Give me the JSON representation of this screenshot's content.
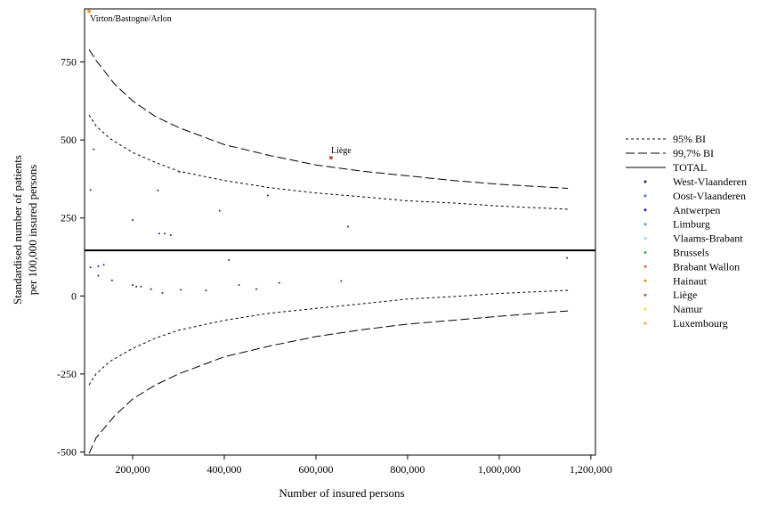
{
  "chart_data": {
    "type": "scatter",
    "xlabel": "Number of insured persons",
    "ylabel_lines": [
      "Standardised number of patients",
      "per 100,000 insured persons"
    ],
    "xlim": [
      95000,
      1210000
    ],
    "ylim": [
      -510,
      920
    ],
    "x_ticks": [
      {
        "value": 200000,
        "label": "200,000"
      },
      {
        "value": 400000,
        "label": "400,000"
      },
      {
        "value": 600000,
        "label": "600,000"
      },
      {
        "value": 800000,
        "label": "800,000"
      },
      {
        "value": 1000000,
        "label": "1,000,000"
      },
      {
        "value": 1200000,
        "label": "1,200,000"
      }
    ],
    "y_ticks": [
      {
        "value": 750,
        "label": "750"
      },
      {
        "value": 500,
        "label": "500"
      },
      {
        "value": 250,
        "label": "250"
      },
      {
        "value": 0,
        "label": "0"
      },
      {
        "value": -250,
        "label": "-250"
      },
      {
        "value": -500,
        "label": "-500"
      }
    ],
    "total_line": 146,
    "limits_95": {
      "upper": [
        [
          105000,
          580
        ],
        [
          120000,
          545
        ],
        [
          150000,
          505
        ],
        [
          200000,
          460
        ],
        [
          250000,
          428
        ],
        [
          300000,
          400
        ],
        [
          400000,
          370
        ],
        [
          500000,
          347
        ],
        [
          600000,
          330
        ],
        [
          700000,
          318
        ],
        [
          800000,
          305
        ],
        [
          900000,
          298
        ],
        [
          1000000,
          288
        ],
        [
          1150000,
          278
        ]
      ],
      "lower": [
        [
          105000,
          -285
        ],
        [
          120000,
          -250
        ],
        [
          150000,
          -210
        ],
        [
          200000,
          -168
        ],
        [
          250000,
          -135
        ],
        [
          300000,
          -110
        ],
        [
          400000,
          -78
        ],
        [
          500000,
          -55
        ],
        [
          600000,
          -40
        ],
        [
          700000,
          -25
        ],
        [
          800000,
          -10
        ],
        [
          900000,
          -2
        ],
        [
          1000000,
          8
        ],
        [
          1150000,
          18
        ]
      ]
    },
    "limits_997": {
      "upper": [
        [
          105000,
          790
        ],
        [
          120000,
          755
        ],
        [
          160000,
          680
        ],
        [
          200000,
          625
        ],
        [
          250000,
          575
        ],
        [
          300000,
          540
        ],
        [
          400000,
          485
        ],
        [
          500000,
          450
        ],
        [
          600000,
          420
        ],
        [
          700000,
          400
        ],
        [
          800000,
          385
        ],
        [
          900000,
          370
        ],
        [
          1000000,
          358
        ],
        [
          1150000,
          345
        ]
      ],
      "lower": [
        [
          105000,
          -505
        ],
        [
          120000,
          -455
        ],
        [
          160000,
          -385
        ],
        [
          200000,
          -330
        ],
        [
          250000,
          -285
        ],
        [
          300000,
          -250
        ],
        [
          400000,
          -195
        ],
        [
          500000,
          -160
        ],
        [
          600000,
          -130
        ],
        [
          700000,
          -108
        ],
        [
          800000,
          -90
        ],
        [
          900000,
          -78
        ],
        [
          1000000,
          -65
        ],
        [
          1150000,
          -48
        ]
      ]
    },
    "points": [
      {
        "x": 108000,
        "y": 340
      },
      {
        "x": 115000,
        "y": 470
      },
      {
        "x": 200000,
        "y": 243
      },
      {
        "x": 255000,
        "y": 338
      },
      {
        "x": 258000,
        "y": 200
      },
      {
        "x": 270000,
        "y": 200
      },
      {
        "x": 283000,
        "y": 195
      },
      {
        "x": 302000,
        "y": 398
      },
      {
        "x": 390000,
        "y": 273
      },
      {
        "x": 495000,
        "y": 322
      },
      {
        "x": 670000,
        "y": 222
      },
      {
        "x": 108000,
        "y": 92
      },
      {
        "x": 125000,
        "y": 95
      },
      {
        "x": 137000,
        "y": 100
      },
      {
        "x": 125000,
        "y": 65
      },
      {
        "x": 155000,
        "y": 50
      },
      {
        "x": 200000,
        "y": 35
      },
      {
        "x": 208000,
        "y": 30
      },
      {
        "x": 218000,
        "y": 30
      },
      {
        "x": 240000,
        "y": 22
      },
      {
        "x": 265000,
        "y": 10
      },
      {
        "x": 305000,
        "y": 20
      },
      {
        "x": 360000,
        "y": 18
      },
      {
        "x": 410000,
        "y": 115
      },
      {
        "x": 432000,
        "y": 35
      },
      {
        "x": 470000,
        "y": 22
      },
      {
        "x": 520000,
        "y": 42
      },
      {
        "x": 655000,
        "y": 48
      },
      {
        "x": 1148000,
        "y": 122
      }
    ],
    "highlighted_points": [
      {
        "label": "Virton/Bastogne/Arlon",
        "x": 105000,
        "y": 912,
        "color": "#f0a020"
      },
      {
        "label": "Liège",
        "x": 633000,
        "y": 443,
        "color": "#c0503a"
      }
    ],
    "legend": {
      "placement": "right",
      "lines": [
        {
          "label": "95% BI",
          "dash": "3,3"
        },
        {
          "label": "99,7% BI",
          "dash": "10,4"
        },
        {
          "label": "TOTAL",
          "dash": ""
        }
      ],
      "regions": [
        {
          "label": "West-Vlaanderen",
          "color": "#1f1f7a"
        },
        {
          "label": "Oost-Vlaanderen",
          "color": "#4a6fd0"
        },
        {
          "label": "Antwerpen",
          "color": "#1a1ae0"
        },
        {
          "label": "Limburg",
          "color": "#3aa0e0"
        },
        {
          "label": "Vlaams-Brabant",
          "color": "#8fd0ef"
        },
        {
          "label": "Brussels",
          "color": "#3cb04a"
        },
        {
          "label": "Brabant Wallon",
          "color": "#d86a30"
        },
        {
          "label": "Hainaut",
          "color": "#f08a20"
        },
        {
          "label": "Liège",
          "color": "#c0503a"
        },
        {
          "label": "Namur",
          "color": "#f0e020"
        },
        {
          "label": "Luxembourg",
          "color": "#f0a020"
        }
      ]
    }
  }
}
